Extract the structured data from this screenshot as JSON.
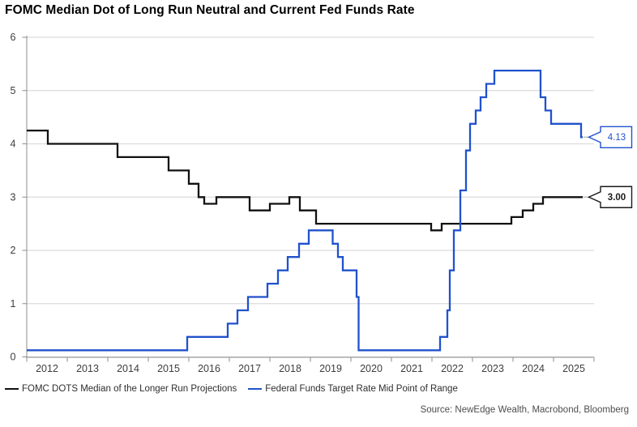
{
  "title": "FOMC Median Dot of Long Run Neutral and Current Fed Funds Rate",
  "source": "Source: NewEdge Wealth, Macrobond, Bloomberg",
  "colors": {
    "black_series": "#111111",
    "blue_series": "#2052cc",
    "grid": "#dcdcdc",
    "axis": "#8c8c8c",
    "tick_label": "#3d3d3d",
    "connector": "#c4c4c4",
    "callout_bg": "#ffffff"
  },
  "legend": [
    {
      "label": "FOMC DOTS Median of the Longer Run Projections",
      "color": "#111111"
    },
    {
      "label": "Federal Funds Target Rate Mid Point of Range",
      "color": "#2052cc"
    }
  ],
  "chart_data": {
    "type": "line",
    "step": true,
    "title": "FOMC Median Dot of Long Run Neutral and Current Fed Funds Rate",
    "xlabel": "",
    "ylabel": "",
    "xlim": [
      2012,
      2026
    ],
    "ylim": [
      0,
      6
    ],
    "grid": true,
    "legend_position": "bottom",
    "yticks": [
      0,
      1,
      2,
      3,
      4,
      5,
      6
    ],
    "xticks": [
      2012,
      2013,
      2014,
      2015,
      2016,
      2017,
      2018,
      2019,
      2020,
      2021,
      2022,
      2023,
      2024,
      2025,
      2026
    ],
    "xtick_labels": [
      "2012",
      "2013",
      "2014",
      "2015",
      "2016",
      "2017",
      "2018",
      "2019",
      "2020",
      "2021",
      "2022",
      "2023",
      "2024",
      "2025"
    ],
    "x_end": 2025.72,
    "series": [
      {
        "name": "FOMC DOTS Median of the Longer Run Projections",
        "color": "#111111",
        "points": [
          [
            2012.0,
            4.25
          ],
          [
            2012.52,
            4.0
          ],
          [
            2014.24,
            3.75
          ],
          [
            2015.5,
            3.5
          ],
          [
            2016.0,
            3.25
          ],
          [
            2016.24,
            3.0
          ],
          [
            2016.38,
            2.875
          ],
          [
            2016.68,
            3.0
          ],
          [
            2017.5,
            2.75
          ],
          [
            2018.0,
            2.875
          ],
          [
            2018.48,
            3.0
          ],
          [
            2018.74,
            2.75
          ],
          [
            2019.14,
            2.5
          ],
          [
            2021.98,
            2.375
          ],
          [
            2022.24,
            2.5
          ],
          [
            2023.96,
            2.625
          ],
          [
            2024.24,
            2.75
          ],
          [
            2024.5,
            2.875
          ],
          [
            2024.74,
            3.0
          ]
        ]
      },
      {
        "name": "Federal Funds Target Rate Mid Point of Range",
        "color": "#2052cc",
        "points": [
          [
            2012.0,
            0.125
          ],
          [
            2015.96,
            0.375
          ],
          [
            2016.96,
            0.625
          ],
          [
            2017.2,
            0.875
          ],
          [
            2017.46,
            1.125
          ],
          [
            2017.94,
            1.375
          ],
          [
            2018.2,
            1.625
          ],
          [
            2018.44,
            1.875
          ],
          [
            2018.72,
            2.125
          ],
          [
            2018.96,
            2.375
          ],
          [
            2019.55,
            2.125
          ],
          [
            2019.68,
            1.875
          ],
          [
            2019.8,
            1.625
          ],
          [
            2020.14,
            1.125
          ],
          [
            2020.19,
            0.125
          ],
          [
            2022.2,
            0.375
          ],
          [
            2022.38,
            0.875
          ],
          [
            2022.44,
            1.625
          ],
          [
            2022.54,
            2.375
          ],
          [
            2022.7,
            3.125
          ],
          [
            2022.84,
            3.875
          ],
          [
            2022.94,
            4.375
          ],
          [
            2023.08,
            4.625
          ],
          [
            2023.2,
            4.875
          ],
          [
            2023.34,
            5.125
          ],
          [
            2023.54,
            5.375
          ],
          [
            2024.68,
            4.875
          ],
          [
            2024.8,
            4.625
          ],
          [
            2024.94,
            4.375
          ],
          [
            2025.68,
            4.125
          ]
        ]
      }
    ],
    "callouts": [
      {
        "label": "4.13",
        "value": 4.125,
        "color": "#2052cc",
        "bold": false
      },
      {
        "label": "3.00",
        "value": 3.0,
        "color": "#1a1a1a",
        "bold": true
      }
    ]
  }
}
